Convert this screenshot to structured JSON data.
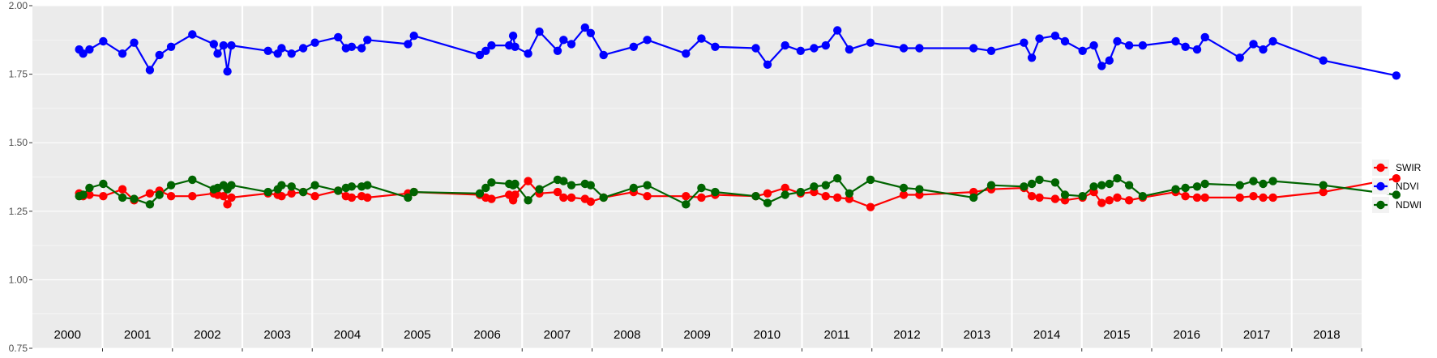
{
  "chart_data": {
    "type": "line",
    "ylim": [
      0.75,
      2.0
    ],
    "x_domain": [
      "2000-01-01",
      "2019-01-01"
    ],
    "y_ticks": [
      "0.75",
      "1.00",
      "1.25",
      "1.50",
      "1.75",
      "2.00"
    ],
    "grid": true,
    "legend_position": "right",
    "year_labels": [
      "2000",
      "2001",
      "2002",
      "2003",
      "2004",
      "2005",
      "2006",
      "2007",
      "2008",
      "2009",
      "2010",
      "2011",
      "2012",
      "2013",
      "2014",
      "2015",
      "2016",
      "2017",
      "2018"
    ],
    "series": [
      {
        "name": "SWIR",
        "color": "#ff0000",
        "points": [
          [
            "2000-09-01",
            1.315
          ],
          [
            "2000-09-22",
            1.305
          ],
          [
            "2000-10-25",
            1.31
          ],
          [
            "2001-01-05",
            1.305
          ],
          [
            "2001-04-15",
            1.33
          ],
          [
            "2001-06-15",
            1.29
          ],
          [
            "2001-09-05",
            1.315
          ],
          [
            "2001-10-25",
            1.325
          ],
          [
            "2001-12-25",
            1.305
          ],
          [
            "2002-04-15",
            1.305
          ],
          [
            "2002-08-05",
            1.315
          ],
          [
            "2002-08-25",
            1.31
          ],
          [
            "2002-09-25",
            1.305
          ],
          [
            "2002-10-15",
            1.275
          ],
          [
            "2002-11-05",
            1.3
          ],
          [
            "2003-05-15",
            1.315
          ],
          [
            "2003-07-05",
            1.31
          ],
          [
            "2003-07-25",
            1.305
          ],
          [
            "2003-09-15",
            1.315
          ],
          [
            "2003-11-15",
            1.32
          ],
          [
            "2004-01-15",
            1.305
          ],
          [
            "2004-05-15",
            1.325
          ],
          [
            "2004-06-25",
            1.305
          ],
          [
            "2004-07-25",
            1.3
          ],
          [
            "2004-09-15",
            1.305
          ],
          [
            "2004-10-15",
            1.3
          ],
          [
            "2005-05-15",
            1.315
          ],
          [
            "2005-06-15",
            1.32
          ],
          [
            "2006-05-25",
            1.31
          ],
          [
            "2006-06-25",
            1.3
          ],
          [
            "2006-07-25",
            1.295
          ],
          [
            "2006-10-25",
            1.31
          ],
          [
            "2006-11-15",
            1.29
          ],
          [
            "2006-11-25",
            1.31
          ],
          [
            "2007-02-01",
            1.36
          ],
          [
            "2007-04-01",
            1.315
          ],
          [
            "2007-07-05",
            1.32
          ],
          [
            "2007-08-05",
            1.3
          ],
          [
            "2007-09-15",
            1.3
          ],
          [
            "2007-11-25",
            1.295
          ],
          [
            "2007-12-25",
            1.285
          ],
          [
            "2008-03-01",
            1.3
          ],
          [
            "2008-08-05",
            1.32
          ],
          [
            "2008-10-15",
            1.305
          ],
          [
            "2009-05-05",
            1.305
          ],
          [
            "2009-07-25",
            1.3
          ],
          [
            "2009-10-05",
            1.31
          ],
          [
            "2010-05-05",
            1.305
          ],
          [
            "2010-07-05",
            1.315
          ],
          [
            "2010-10-05",
            1.335
          ],
          [
            "2010-12-25",
            1.315
          ],
          [
            "2011-03-05",
            1.32
          ],
          [
            "2011-05-05",
            1.305
          ],
          [
            "2011-07-05",
            1.3
          ],
          [
            "2011-09-05",
            1.295
          ],
          [
            "2011-12-25",
            1.265
          ],
          [
            "2012-06-15",
            1.31
          ],
          [
            "2012-09-05",
            1.31
          ],
          [
            "2013-06-15",
            1.32
          ],
          [
            "2013-09-15",
            1.33
          ],
          [
            "2014-03-05",
            1.335
          ],
          [
            "2014-04-15",
            1.305
          ],
          [
            "2014-05-25",
            1.3
          ],
          [
            "2014-08-15",
            1.295
          ],
          [
            "2014-10-05",
            1.29
          ],
          [
            "2015-01-05",
            1.3
          ],
          [
            "2015-03-05",
            1.32
          ],
          [
            "2015-04-15",
            1.28
          ],
          [
            "2015-05-25",
            1.29
          ],
          [
            "2015-07-05",
            1.3
          ],
          [
            "2015-09-05",
            1.29
          ],
          [
            "2015-11-15",
            1.3
          ],
          [
            "2016-05-05",
            1.32
          ],
          [
            "2016-06-25",
            1.305
          ],
          [
            "2016-08-25",
            1.3
          ],
          [
            "2016-10-05",
            1.3
          ],
          [
            "2017-04-05",
            1.3
          ],
          [
            "2017-06-15",
            1.305
          ],
          [
            "2017-08-05",
            1.3
          ],
          [
            "2017-09-25",
            1.3
          ],
          [
            "2018-06-15",
            1.32
          ],
          [
            "2019-07-01",
            1.37
          ]
        ]
      },
      {
        "name": "NDVI",
        "color": "#0000ff",
        "points": [
          [
            "2000-09-01",
            1.84
          ],
          [
            "2000-09-22",
            1.825
          ],
          [
            "2000-10-25",
            1.84
          ],
          [
            "2001-01-05",
            1.87
          ],
          [
            "2001-04-15",
            1.825
          ],
          [
            "2001-06-15",
            1.865
          ],
          [
            "2001-09-05",
            1.765
          ],
          [
            "2001-10-25",
            1.82
          ],
          [
            "2001-12-25",
            1.85
          ],
          [
            "2002-04-15",
            1.895
          ],
          [
            "2002-08-05",
            1.86
          ],
          [
            "2002-08-25",
            1.825
          ],
          [
            "2002-09-25",
            1.855
          ],
          [
            "2002-10-15",
            1.76
          ],
          [
            "2002-11-05",
            1.855
          ],
          [
            "2003-05-15",
            1.835
          ],
          [
            "2003-07-05",
            1.825
          ],
          [
            "2003-07-25",
            1.845
          ],
          [
            "2003-09-15",
            1.825
          ],
          [
            "2003-11-15",
            1.845
          ],
          [
            "2004-01-15",
            1.865
          ],
          [
            "2004-05-15",
            1.885
          ],
          [
            "2004-06-25",
            1.845
          ],
          [
            "2004-07-25",
            1.85
          ],
          [
            "2004-09-15",
            1.845
          ],
          [
            "2004-10-15",
            1.875
          ],
          [
            "2005-05-15",
            1.86
          ],
          [
            "2005-06-15",
            1.89
          ],
          [
            "2006-05-25",
            1.82
          ],
          [
            "2006-06-25",
            1.835
          ],
          [
            "2006-07-25",
            1.855
          ],
          [
            "2006-10-25",
            1.855
          ],
          [
            "2006-11-15",
            1.89
          ],
          [
            "2006-11-25",
            1.85
          ],
          [
            "2007-02-01",
            1.825
          ],
          [
            "2007-04-01",
            1.905
          ],
          [
            "2007-07-05",
            1.835
          ],
          [
            "2007-08-05",
            1.875
          ],
          [
            "2007-09-15",
            1.86
          ],
          [
            "2007-11-25",
            1.92
          ],
          [
            "2007-12-25",
            1.9
          ],
          [
            "2008-03-01",
            1.82
          ],
          [
            "2008-08-05",
            1.85
          ],
          [
            "2008-10-15",
            1.875
          ],
          [
            "2009-05-05",
            1.825
          ],
          [
            "2009-07-25",
            1.88
          ],
          [
            "2009-10-05",
            1.85
          ],
          [
            "2010-05-05",
            1.845
          ],
          [
            "2010-07-05",
            1.785
          ],
          [
            "2010-10-05",
            1.855
          ],
          [
            "2010-12-25",
            1.835
          ],
          [
            "2011-03-05",
            1.845
          ],
          [
            "2011-05-05",
            1.855
          ],
          [
            "2011-07-05",
            1.91
          ],
          [
            "2011-09-05",
            1.84
          ],
          [
            "2011-12-25",
            1.865
          ],
          [
            "2012-06-15",
            1.845
          ],
          [
            "2012-09-05",
            1.845
          ],
          [
            "2013-06-15",
            1.845
          ],
          [
            "2013-09-15",
            1.835
          ],
          [
            "2014-03-05",
            1.865
          ],
          [
            "2014-04-15",
            1.81
          ],
          [
            "2014-05-25",
            1.88
          ],
          [
            "2014-08-15",
            1.89
          ],
          [
            "2014-10-05",
            1.87
          ],
          [
            "2015-01-05",
            1.835
          ],
          [
            "2015-03-05",
            1.855
          ],
          [
            "2015-04-15",
            1.78
          ],
          [
            "2015-05-25",
            1.8
          ],
          [
            "2015-07-05",
            1.87
          ],
          [
            "2015-09-05",
            1.855
          ],
          [
            "2015-11-15",
            1.855
          ],
          [
            "2016-05-05",
            1.87
          ],
          [
            "2016-06-25",
            1.85
          ],
          [
            "2016-08-25",
            1.84
          ],
          [
            "2016-10-05",
            1.885
          ],
          [
            "2017-04-05",
            1.81
          ],
          [
            "2017-06-15",
            1.86
          ],
          [
            "2017-08-05",
            1.84
          ],
          [
            "2017-09-25",
            1.87
          ],
          [
            "2018-06-15",
            1.8
          ],
          [
            "2019-07-01",
            1.745
          ]
        ]
      },
      {
        "name": "NDWI",
        "color": "#006400",
        "points": [
          [
            "2000-09-01",
            1.305
          ],
          [
            "2000-09-22",
            1.31
          ],
          [
            "2000-10-25",
            1.335
          ],
          [
            "2001-01-05",
            1.35
          ],
          [
            "2001-04-15",
            1.3
          ],
          [
            "2001-06-15",
            1.295
          ],
          [
            "2001-09-05",
            1.275
          ],
          [
            "2001-10-25",
            1.31
          ],
          [
            "2001-12-25",
            1.345
          ],
          [
            "2002-04-15",
            1.365
          ],
          [
            "2002-08-05",
            1.33
          ],
          [
            "2002-08-25",
            1.335
          ],
          [
            "2002-09-25",
            1.345
          ],
          [
            "2002-10-15",
            1.33
          ],
          [
            "2002-11-05",
            1.345
          ],
          [
            "2003-05-15",
            1.32
          ],
          [
            "2003-07-05",
            1.33
          ],
          [
            "2003-07-25",
            1.345
          ],
          [
            "2003-09-15",
            1.34
          ],
          [
            "2003-11-15",
            1.32
          ],
          [
            "2004-01-15",
            1.345
          ],
          [
            "2004-05-15",
            1.325
          ],
          [
            "2004-06-25",
            1.335
          ],
          [
            "2004-07-25",
            1.34
          ],
          [
            "2004-09-15",
            1.34
          ],
          [
            "2004-10-15",
            1.345
          ],
          [
            "2005-05-15",
            1.3
          ],
          [
            "2005-06-15",
            1.32
          ],
          [
            "2006-05-25",
            1.315
          ],
          [
            "2006-06-25",
            1.335
          ],
          [
            "2006-07-25",
            1.355
          ],
          [
            "2006-10-25",
            1.35
          ],
          [
            "2006-11-15",
            1.345
          ],
          [
            "2006-11-25",
            1.35
          ],
          [
            "2007-02-01",
            1.29
          ],
          [
            "2007-04-01",
            1.33
          ],
          [
            "2007-07-05",
            1.365
          ],
          [
            "2007-08-05",
            1.36
          ],
          [
            "2007-09-15",
            1.345
          ],
          [
            "2007-11-25",
            1.35
          ],
          [
            "2007-12-25",
            1.345
          ],
          [
            "2008-03-01",
            1.3
          ],
          [
            "2008-08-05",
            1.335
          ],
          [
            "2008-10-15",
            1.345
          ],
          [
            "2009-05-05",
            1.275
          ],
          [
            "2009-07-25",
            1.335
          ],
          [
            "2009-10-05",
            1.32
          ],
          [
            "2010-05-05",
            1.305
          ],
          [
            "2010-07-05",
            1.28
          ],
          [
            "2010-10-05",
            1.31
          ],
          [
            "2010-12-25",
            1.32
          ],
          [
            "2011-03-05",
            1.34
          ],
          [
            "2011-05-05",
            1.345
          ],
          [
            "2011-07-05",
            1.37
          ],
          [
            "2011-09-05",
            1.315
          ],
          [
            "2011-12-25",
            1.365
          ],
          [
            "2012-06-15",
            1.335
          ],
          [
            "2012-09-05",
            1.33
          ],
          [
            "2013-06-15",
            1.3
          ],
          [
            "2013-09-15",
            1.345
          ],
          [
            "2014-03-05",
            1.34
          ],
          [
            "2014-04-15",
            1.35
          ],
          [
            "2014-05-25",
            1.365
          ],
          [
            "2014-08-15",
            1.355
          ],
          [
            "2014-10-05",
            1.31
          ],
          [
            "2015-01-05",
            1.305
          ],
          [
            "2015-03-05",
            1.34
          ],
          [
            "2015-04-15",
            1.345
          ],
          [
            "2015-05-25",
            1.35
          ],
          [
            "2015-07-05",
            1.37
          ],
          [
            "2015-09-05",
            1.345
          ],
          [
            "2015-11-15",
            1.305
          ],
          [
            "2016-05-05",
            1.33
          ],
          [
            "2016-06-25",
            1.335
          ],
          [
            "2016-08-25",
            1.34
          ],
          [
            "2016-10-05",
            1.35
          ],
          [
            "2017-04-05",
            1.345
          ],
          [
            "2017-06-15",
            1.36
          ],
          [
            "2017-08-05",
            1.35
          ],
          [
            "2017-09-25",
            1.36
          ],
          [
            "2018-06-15",
            1.345
          ],
          [
            "2019-07-01",
            1.31
          ]
        ]
      }
    ]
  }
}
